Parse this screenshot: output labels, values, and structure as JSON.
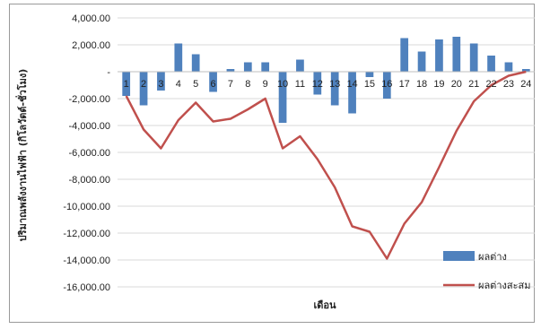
{
  "chart_data": {
    "type": "bar",
    "xlabel": "เดือน",
    "ylabel": "ปริมาณพลังงานไฟฟ้า (กิโลวัตต์-ชั่วโมง)",
    "ylim": [
      -16000,
      4000
    ],
    "y_ticks": [
      4000,
      2000,
      0,
      -2000,
      -4000,
      -6000,
      -8000,
      -10000,
      -12000,
      -14000,
      -16000
    ],
    "y_tick_labels": [
      "4,000.00",
      "2,000.00",
      "-",
      "-2,000.00",
      "-4,000.00",
      "-6,000.00",
      "-8,000.00",
      "-10,000.00",
      "-12,000.00",
      "-14,000.00",
      "-16,000.00"
    ],
    "categories": [
      "1",
      "2",
      "3",
      "4",
      "5",
      "6",
      "7",
      "8",
      "9",
      "10",
      "11",
      "12",
      "13",
      "14",
      "15",
      "16",
      "17",
      "18",
      "19",
      "20",
      "21",
      "22",
      "23",
      "24"
    ],
    "grid": true,
    "legend_position": "bottom-right",
    "series": [
      {
        "name": "ผลต่าง",
        "type": "bar",
        "color": "#4f81bd",
        "values": [
          -1800,
          -2500,
          -1400,
          2100,
          1300,
          -1500,
          200,
          700,
          700,
          -3800,
          900,
          -1700,
          -2500,
          -3100,
          -400,
          -2000,
          2500,
          1500,
          2400,
          2600,
          2100,
          1200,
          700,
          200
        ]
      },
      {
        "name": "ผลต่างสะสม",
        "type": "line",
        "color": "#c0504d",
        "values": [
          -1800,
          -4300,
          -5700,
          -3600,
          -2300,
          -3700,
          -3500,
          -2800,
          -2000,
          -5700,
          -4800,
          -6500,
          -8600,
          -11500,
          -11900,
          -13900,
          -11300,
          -9700,
          -7100,
          -4400,
          -2200,
          -1000,
          -300,
          0
        ]
      }
    ]
  }
}
